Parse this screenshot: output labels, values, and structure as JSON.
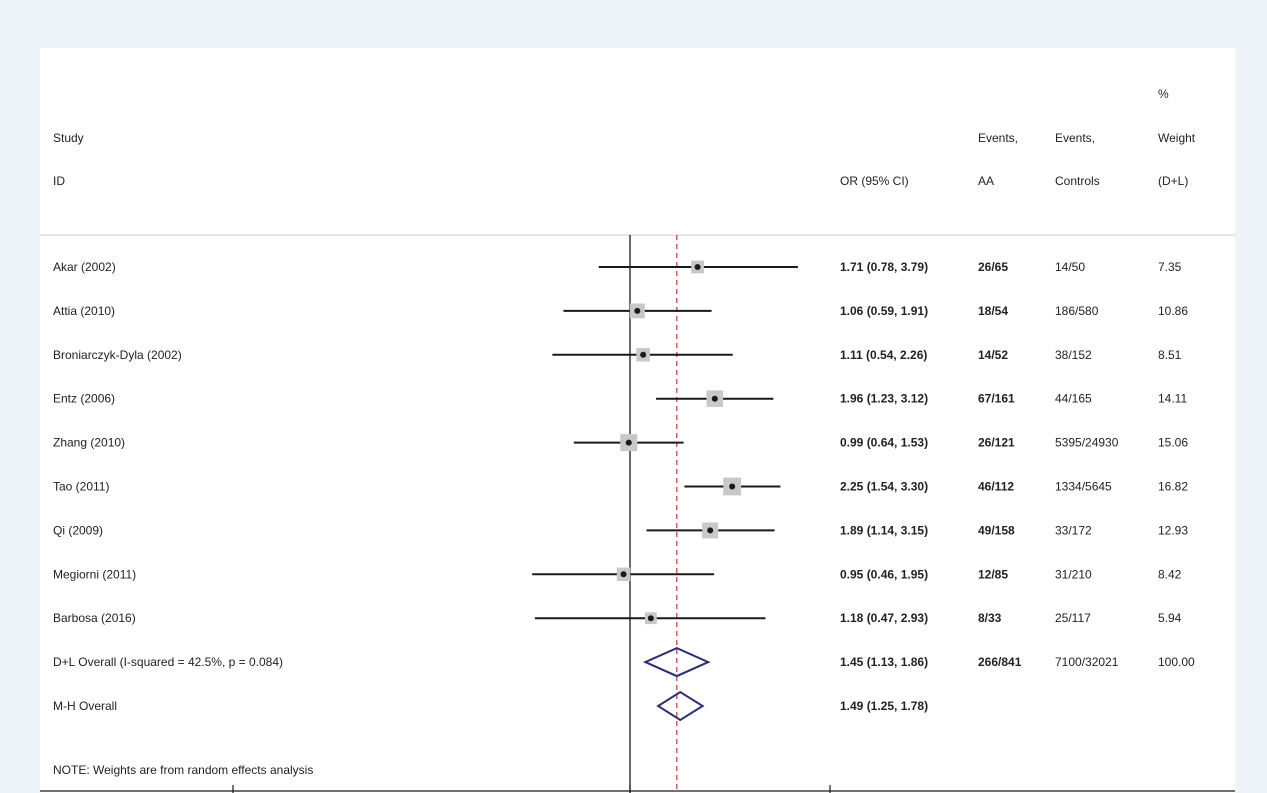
{
  "chart_data": {
    "type": "forest",
    "header": {
      "study_line1": "Study",
      "study_line2": "ID",
      "or_label": "OR (95% CI)",
      "events_aa_line1": "Events,",
      "events_aa_line2": "AA",
      "events_ctrl_line1": "Events,",
      "events_ctrl_line2": "Controls",
      "weight_line1": "%",
      "weight_line2": "Weight",
      "weight_line3": "(D+L)"
    },
    "null_value": 1,
    "pooled_reference": 1.45,
    "studies": [
      {
        "id": "Akar (2002)",
        "or": 1.71,
        "lo": 0.78,
        "hi": 3.79,
        "ci_text": "1.71 (0.78, 3.79)",
        "events_aa": "26/65",
        "events_ctrl": "14/50",
        "weight_text": "7.35",
        "weight": 7.35
      },
      {
        "id": "Attia (2010)",
        "or": 1.06,
        "lo": 0.59,
        "hi": 1.91,
        "ci_text": "1.06 (0.59, 1.91)",
        "events_aa": "18/54",
        "events_ctrl": "186/580",
        "weight_text": "10.86",
        "weight": 10.86
      },
      {
        "id": "Broniarczyk-Dyla (2002)",
        "or": 1.11,
        "lo": 0.54,
        "hi": 2.26,
        "ci_text": "1.11 (0.54, 2.26)",
        "events_aa": "14/52",
        "events_ctrl": "38/152",
        "weight_text": "8.51",
        "weight": 8.51
      },
      {
        "id": "Entz (2006)",
        "or": 1.96,
        "lo": 1.23,
        "hi": 3.12,
        "ci_text": "1.96 (1.23, 3.12)",
        "events_aa": "67/161",
        "events_ctrl": "44/165",
        "weight_text": "14.11",
        "weight": 14.11
      },
      {
        "id": "Zhang (2010)",
        "or": 0.99,
        "lo": 0.64,
        "hi": 1.53,
        "ci_text": "0.99 (0.64, 1.53)",
        "events_aa": "26/121",
        "events_ctrl": "5395/24930",
        "weight_text": "15.06",
        "weight": 15.06
      },
      {
        "id": "Tao (2011)",
        "or": 2.25,
        "lo": 1.54,
        "hi": 3.3,
        "ci_text": "2.25 (1.54, 3.30)",
        "events_aa": "46/112",
        "events_ctrl": "1334/5645",
        "weight_text": "16.82",
        "weight": 16.82
      },
      {
        "id": "Qi (2009)",
        "or": 1.89,
        "lo": 1.14,
        "hi": 3.15,
        "ci_text": "1.89 (1.14, 3.15)",
        "events_aa": "49/158",
        "events_ctrl": "33/172",
        "weight_text": "12.93",
        "weight": 12.93
      },
      {
        "id": "Megiorni (2011)",
        "or": 0.95,
        "lo": 0.46,
        "hi": 1.95,
        "ci_text": "0.95 (0.46, 1.95)",
        "events_aa": "12/85",
        "events_ctrl": "31/210",
        "weight_text": "8.42",
        "weight": 8.42
      },
      {
        "id": "Barbosa (2016)",
        "or": 1.18,
        "lo": 0.47,
        "hi": 2.93,
        "ci_text": "1.18 (0.47, 2.93)",
        "events_aa": "8/33",
        "events_ctrl": "25/117",
        "weight_text": "5.94",
        "weight": 5.94
      }
    ],
    "overall": [
      {
        "id": "D+L Overall  (I-squared = 42.5%, p = 0.084)",
        "or": 1.45,
        "lo": 1.13,
        "hi": 1.86,
        "ci_text": "1.45 (1.13, 1.86)",
        "events_aa": "266/841",
        "events_ctrl": "7100/32021",
        "weight_text": "100.00"
      },
      {
        "id": "M-H Overall",
        "or": 1.49,
        "lo": 1.25,
        "hi": 1.78,
        "ci_text": "1.49 (1.25, 1.78)",
        "events_aa": "",
        "events_ctrl": "",
        "weight_text": ""
      }
    ],
    "note": "NOTE: Weights are from random effects analysis",
    "colors": {
      "text": "#222222",
      "ci_line": "#1a1a1a",
      "weight_box": "#c8c8c8",
      "diamond": "#2a2f7a",
      "pooled_line": "#c0392b",
      "null_line": "#1a1a1a",
      "header_rule": "#cccccc"
    }
  }
}
